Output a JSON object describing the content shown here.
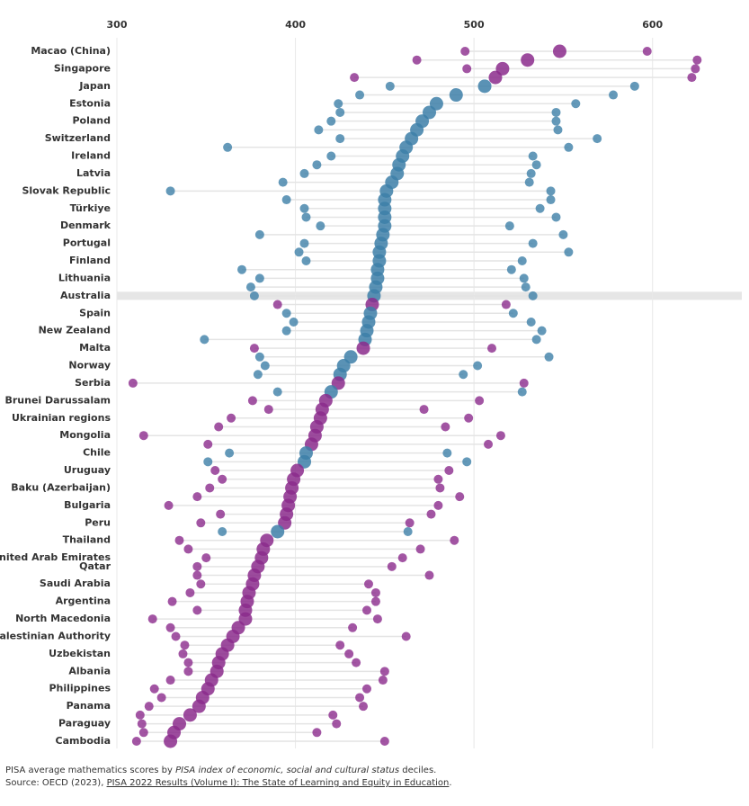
{
  "chart_data": {
    "type": "dotrange",
    "categories": [
      "Macao (China)",
      null,
      "Singapore",
      null,
      "Japan",
      null,
      "Estonia",
      null,
      "Poland",
      null,
      "Switzerland",
      null,
      "Ireland",
      null,
      "Latvia",
      null,
      "Slovak Republic",
      null,
      "Türkiye",
      null,
      "Denmark",
      null,
      "Portugal",
      null,
      "Finland",
      null,
      "Lithuania",
      null,
      "Australia",
      null,
      "Spain",
      null,
      "New Zealand",
      null,
      "Malta",
      null,
      "Norway",
      null,
      "Serbia",
      null,
      "Brunei Darussalam",
      null,
      "Ukrainian regions",
      null,
      "Mongolia",
      null,
      "Chile",
      null,
      "Uruguay",
      null,
      "Baku (Azerbaijan)",
      null,
      "Bulgaria",
      null,
      "Peru",
      null,
      "Thailand",
      null,
      "United Arab Emirates",
      "Qatar",
      null,
      "Saudi Arabia",
      null,
      "Argentina",
      null,
      "North Macedonia",
      null,
      "Palestinian Authority",
      null,
      "Uzbekistan",
      null,
      "Albania",
      null,
      "Philippines",
      null,
      "Panama",
      null,
      "Paraguay",
      null,
      "Cambodia"
    ],
    "series": [
      {
        "values": [
          548,
          530,
          516,
          512,
          506,
          490,
          479,
          475,
          471,
          468,
          465,
          462,
          460,
          458,
          457,
          454,
          451,
          450,
          450,
          450,
          450,
          449,
          448,
          447,
          447,
          446,
          446,
          445,
          444,
          443,
          442,
          441,
          440,
          439,
          438,
          431,
          427,
          425,
          424,
          420,
          417,
          415,
          414,
          412,
          411,
          409,
          406,
          405,
          401,
          399,
          398,
          397,
          396,
          395,
          394,
          390,
          384,
          382,
          381,
          379,
          377,
          376,
          374,
          373,
          372,
          372,
          368,
          365,
          362,
          359,
          357,
          356,
          353,
          351,
          348,
          346,
          341,
          335,
          332,
          330
        ]
      },
      {
        "values": [
          495,
          468,
          496,
          433,
          453,
          436,
          424,
          425,
          420,
          413,
          425,
          362,
          420,
          412,
          405,
          393,
          330,
          395,
          405,
          406,
          414,
          380,
          405,
          402,
          406,
          370,
          380,
          375,
          377,
          390,
          395,
          399,
          395,
          349,
          377,
          380,
          383,
          379,
          309,
          390,
          376,
          385,
          364,
          357,
          315,
          351,
          363,
          351,
          355,
          359,
          352,
          345,
          329,
          358,
          347,
          359,
          335,
          340,
          350,
          345,
          345,
          347,
          341,
          331,
          345,
          320,
          330,
          333,
          338,
          337,
          340,
          340,
          330,
          321,
          325,
          318,
          313,
          314,
          315,
          311
        ]
      },
      {
        "values": [
          597,
          625,
          624,
          622,
          590,
          578,
          557,
          546,
          546,
          547,
          569,
          553,
          533,
          535,
          532,
          531,
          543,
          543,
          537,
          546,
          520,
          550,
          533,
          553,
          527,
          521,
          528,
          529,
          533,
          518,
          522,
          532,
          538,
          535,
          510,
          542,
          502,
          494,
          528,
          527,
          503,
          472,
          497,
          484,
          515,
          508,
          485,
          496,
          486,
          480,
          481,
          492,
          480,
          476,
          464,
          463,
          489,
          470,
          460,
          454,
          475,
          441,
          445,
          445,
          440,
          446,
          432,
          462,
          425,
          430,
          434,
          450,
          449,
          440,
          436,
          438,
          421,
          423,
          412,
          450
        ]
      }
    ],
    "colors": [
      "#8b2b8c",
      "#8b2b8c",
      "#8b2b8c",
      "#8b2b8c",
      "#3d7fa8",
      "#3d7fa8",
      "#3d7fa8",
      "#3d7fa8",
      "#3d7fa8",
      "#3d7fa8",
      "#3d7fa8",
      "#3d7fa8",
      "#3d7fa8",
      "#3d7fa8",
      "#3d7fa8",
      "#3d7fa8",
      "#3d7fa8",
      "#3d7fa8",
      "#3d7fa8",
      "#3d7fa8",
      "#3d7fa8",
      "#3d7fa8",
      "#3d7fa8",
      "#3d7fa8",
      "#3d7fa8",
      "#3d7fa8",
      "#3d7fa8",
      "#3d7fa8",
      "#3d7fa8",
      "#8b2b8c",
      "#3d7fa8",
      "#3d7fa8",
      "#3d7fa8",
      "#3d7fa8",
      "#8b2b8c",
      "#3d7fa8",
      "#3d7fa8",
      "#3d7fa8",
      "#8b2b8c",
      "#3d7fa8",
      "#8b2b8c",
      "#8b2b8c",
      "#8b2b8c",
      "#8b2b8c",
      "#8b2b8c",
      "#8b2b8c",
      "#3d7fa8",
      "#3d7fa8",
      "#8b2b8c",
      "#8b2b8c",
      "#8b2b8c",
      "#8b2b8c",
      "#8b2b8c",
      "#8b2b8c",
      "#8b2b8c",
      "#3d7fa8",
      "#8b2b8c",
      "#8b2b8c",
      "#8b2b8c",
      "#8b2b8c",
      "#8b2b8c",
      "#8b2b8c",
      "#8b2b8c",
      "#8b2b8c",
      "#8b2b8c",
      "#8b2b8c",
      "#8b2b8c",
      "#8b2b8c",
      "#8b2b8c",
      "#8b2b8c",
      "#8b2b8c",
      "#8b2b8c",
      "#8b2b8c",
      "#8b2b8c",
      "#8b2b8c",
      "#8b2b8c",
      "#8b2b8c",
      "#8b2b8c",
      "#8b2b8c",
      "#8b2b8c"
    ],
    "highlight": "Australia",
    "xlim": [
      300,
      650
    ],
    "xticks": [
      300,
      400,
      500,
      600
    ],
    "grid": true,
    "note": [
      "PISA average mathematics scores by ",
      "PISA index of economic, social and cultural status",
      " deciles."
    ],
    "source": [
      "Source: OECD (2023), ",
      "PISA 2022 Results (Volume I): The State of Learning and Equity in Education",
      "."
    ]
  }
}
